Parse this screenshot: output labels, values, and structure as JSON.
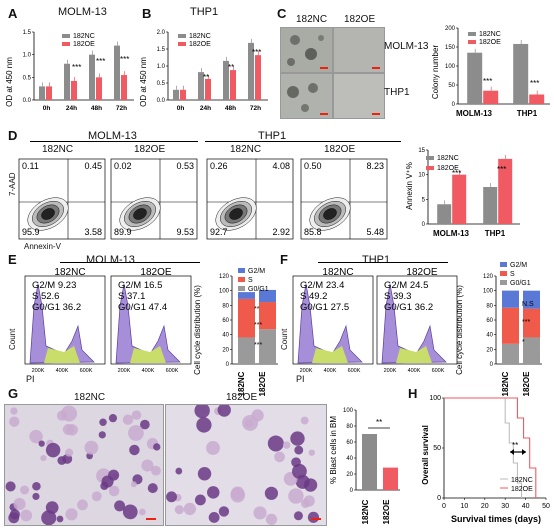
{
  "panel_labels": {
    "a": "A",
    "b": "B",
    "c": "C",
    "d": "D",
    "e": "E",
    "f": "F",
    "g": "G",
    "h": "H"
  },
  "colors": {
    "nc": "#8c8c8c",
    "oe": "#f05a63",
    "g2m": "#5a78d6",
    "s": "#f05a4a",
    "g0g1": "#9a9a9a",
    "scale": "#e21a1a"
  },
  "A": {
    "title": "MOLM-13",
    "ylabel": "OD at 450 nm",
    "legend": [
      "182NC",
      "182OE"
    ],
    "sig": [
      "***",
      "***",
      "***"
    ]
  },
  "B": {
    "title": "THP1",
    "ylabel": "OD at 450 nm",
    "legend": [
      "182NC",
      "182OE"
    ],
    "sig": [
      "**",
      "**",
      "***"
    ]
  },
  "C": {
    "cols": [
      "182NC",
      "182OE"
    ],
    "rows": [
      "MOLM-13",
      "THP1"
    ],
    "ylabel": "Colony number",
    "legend": [
      "182NC",
      "182OE"
    ],
    "sig": [
      "***",
      "***"
    ]
  },
  "D": {
    "groups": [
      "MOLM-13",
      "THP1"
    ],
    "plots": [
      {
        "label": "182NC",
        "ul": "0.11",
        "ur": "0.45",
        "ll": "95.9",
        "lr": "3.58"
      },
      {
        "label": "182OE",
        "ul": "0.02",
        "ur": "0.53",
        "ll": "89.9",
        "lr": "9.53"
      },
      {
        "label": "182NC",
        "ul": "0.26",
        "ur": "4.08",
        "ll": "92.7",
        "lr": "2.92"
      },
      {
        "label": "182OE",
        "ul": "0.50",
        "ur": "8.23",
        "ll": "85.8",
        "lr": "5.48"
      }
    ],
    "yaxis": "7-AAD",
    "xaxis": "Annexin-V",
    "bar_ylabel": "Annexin V⁺%",
    "legend": [
      "182NC",
      "182OE"
    ],
    "sig": [
      "***",
      "***"
    ]
  },
  "E": {
    "title": "MOLM-13",
    "plots": [
      {
        "label": "182NC",
        "g2m": "G2/M 9.23",
        "s": "S     52.6",
        "g0g1": "G0/G1 36.2"
      },
      {
        "label": "182OE",
        "g2m": "G2/M 16.5",
        "s": "S     37.1",
        "g0g1": "G0/G1 47.4"
      }
    ],
    "ylabel": "Count",
    "xlabel": "PI",
    "xticks": [
      "200K",
      "400K",
      "600K"
    ],
    "bar_ylabel": "Cell cycle distribution (%)",
    "legend": [
      "G2/M",
      "S",
      "G0/G1"
    ],
    "sig": [
      "**",
      "***",
      "***"
    ]
  },
  "F": {
    "title": "THP1",
    "plots": [
      {
        "label": "182NC",
        "g2m": "G2/M 23.4",
        "s": "S     49.2",
        "g0g1": "G0/G1 27.5"
      },
      {
        "label": "182OE",
        "g2m": "G2/M 24.5",
        "s": "S     39.3",
        "g0g1": "G0/G1 36.2"
      }
    ],
    "ylabel": "Count",
    "xlabel": "PI",
    "xticks": [
      "200K",
      "400K",
      "600K"
    ],
    "bar_ylabel": "Cell cycle distribution (%)",
    "legend": [
      "G2/M",
      "S",
      "G0/G1"
    ],
    "sig": [
      "N.S",
      "***",
      "*"
    ]
  },
  "G": {
    "cols": [
      "182NC",
      "182OE"
    ],
    "bar_ylabel": "% Blast cells in BM",
    "sig": "**"
  },
  "H": {
    "ylabel": "Overall survival",
    "xlabel": "Survival times (days)",
    "legend": [
      "182NC",
      "182OE"
    ],
    "sig": "**"
  },
  "chart_data": [
    {
      "panel": "A",
      "type": "bar",
      "title": "MOLM-13",
      "ylabel": "OD at 450 nm",
      "categories": [
        "0h",
        "24h",
        "48h",
        "72h"
      ],
      "ylim": [
        0,
        1.5
      ],
      "yticks": [
        "0.0",
        "0.5",
        "1.0",
        "1.5"
      ],
      "series": [
        {
          "name": "182NC",
          "values": [
            0.3,
            0.8,
            1.0,
            1.2
          ]
        },
        {
          "name": "182OE",
          "values": [
            0.3,
            0.42,
            0.5,
            0.55
          ]
        }
      ]
    },
    {
      "panel": "B",
      "type": "bar",
      "title": "THP1",
      "ylabel": "OD at 450 nm",
      "categories": [
        "0h",
        "24h",
        "48h",
        "72h"
      ],
      "ylim": [
        0,
        2.0
      ],
      "yticks": [
        "0.0",
        "0.5",
        "1.0",
        "1.5",
        "2.0"
      ],
      "series": [
        {
          "name": "182NC",
          "values": [
            0.3,
            0.82,
            1.15,
            1.68
          ]
        },
        {
          "name": "182OE",
          "values": [
            0.3,
            0.62,
            0.88,
            1.32
          ]
        }
      ]
    },
    {
      "panel": "C",
      "type": "bar",
      "ylabel": "Colony number",
      "categories": [
        "MOLM-13",
        "THP1"
      ],
      "ylim": [
        0,
        200
      ],
      "yticks": [
        "0",
        "50",
        "100",
        "150",
        "200"
      ],
      "series": [
        {
          "name": "182NC",
          "values": [
            135,
            158
          ]
        },
        {
          "name": "182OE",
          "values": [
            35,
            25
          ]
        }
      ]
    },
    {
      "panel": "D",
      "type": "bar",
      "ylabel": "Annexin V⁺%",
      "categories": [
        "MOLM-13",
        "THP1"
      ],
      "ylim": [
        0,
        15
      ],
      "yticks": [
        "0",
        "5",
        "10",
        "15"
      ],
      "series": [
        {
          "name": "182NC",
          "values": [
            4,
            7.5
          ]
        },
        {
          "name": "182OE",
          "values": [
            10,
            13.2
          ]
        }
      ]
    },
    {
      "panel": "E",
      "type": "bar",
      "stacked": true,
      "ylabel": "Cell cycle distribution (%)",
      "categories": [
        "182NC",
        "182OE"
      ],
      "ylim": [
        0,
        120
      ],
      "yticks": [
        "0",
        "20",
        "40",
        "60",
        "80",
        "100",
        "120"
      ],
      "series": [
        {
          "name": "G0/G1",
          "values": [
            36.2,
            47.4
          ]
        },
        {
          "name": "S",
          "values": [
            52.6,
            37.1
          ]
        },
        {
          "name": "G2/M",
          "values": [
            9.23,
            16.5
          ]
        }
      ]
    },
    {
      "panel": "F",
      "type": "bar",
      "stacked": true,
      "ylabel": "Cell cycle distribution (%)",
      "categories": [
        "182NC",
        "182OE"
      ],
      "ylim": [
        0,
        120
      ],
      "yticks": [
        "0",
        "20",
        "40",
        "60",
        "80",
        "100",
        "120"
      ],
      "series": [
        {
          "name": "G0/G1",
          "values": [
            27.5,
            36.2
          ]
        },
        {
          "name": "S",
          "values": [
            49.2,
            39.3
          ]
        },
        {
          "name": "G2/M",
          "values": [
            23.4,
            24.5
          ]
        }
      ]
    },
    {
      "panel": "G",
      "type": "bar",
      "ylabel": "% Blast cells in BM",
      "categories": [
        "182NC",
        "182OE"
      ],
      "ylim": [
        0,
        100
      ],
      "yticks": [
        "0",
        "20",
        "40",
        "60",
        "80",
        "100"
      ],
      "series": [
        {
          "values": [
            70,
            28
          ]
        }
      ]
    },
    {
      "panel": "H",
      "type": "line",
      "ylabel": "Overall survival",
      "xlabel": "Survival times (days)",
      "xlim": [
        0,
        50
      ],
      "ylim": [
        0,
        100
      ],
      "xticks": [
        "0",
        "10",
        "20",
        "30",
        "40",
        "50"
      ],
      "yticks": [
        "0",
        "50",
        "100"
      ],
      "series": [
        {
          "name": "182NC",
          "x": [
            0,
            28,
            30,
            32,
            34,
            36,
            38
          ],
          "y": [
            100,
            100,
            75,
            55,
            35,
            15,
            0
          ]
        },
        {
          "name": "182OE",
          "x": [
            0,
            33,
            36,
            39,
            42,
            45
          ],
          "y": [
            100,
            100,
            80,
            60,
            30,
            0
          ]
        }
      ]
    }
  ]
}
